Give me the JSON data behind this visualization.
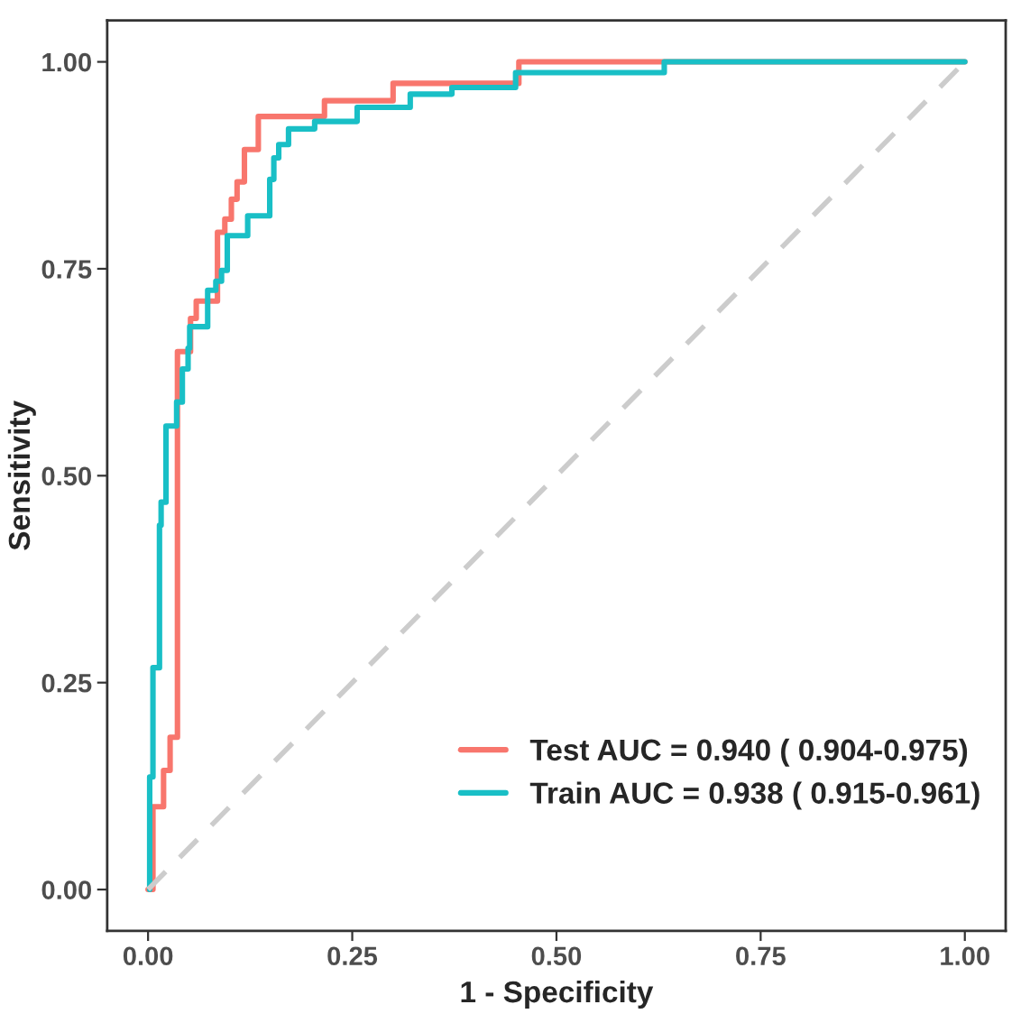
{
  "chart_data": {
    "type": "line",
    "xlabel": "1 - Specificity",
    "ylabel": "Sensitivity",
    "xlim": [
      -0.05,
      1.05
    ],
    "ylim": [
      -0.05,
      1.05
    ],
    "xticks": [
      {
        "value": 0,
        "label": "0.00"
      },
      {
        "value": 0.25,
        "label": "0.25"
      },
      {
        "value": 0.5,
        "label": "0.50"
      },
      {
        "value": 0.75,
        "label": "0.75"
      },
      {
        "value": 1,
        "label": "1.00"
      }
    ],
    "yticks": [
      {
        "value": 0,
        "label": "0.00"
      },
      {
        "value": 0.25,
        "label": "0.25"
      },
      {
        "value": 0.5,
        "label": "0.50"
      },
      {
        "value": 0.75,
        "label": "0.75"
      },
      {
        "value": 1,
        "label": "1.00"
      }
    ],
    "grid": false,
    "legend": "bottom right",
    "line_style": "solid",
    "marker": "none",
    "series": [
      {
        "name": "Test AUC = 0.940 ( 0.904-0.975)",
        "color": "#f8766d",
        "x": [
          0,
          0.006,
          0.006,
          0.019,
          0.019,
          0.027,
          0.027,
          0.036,
          0.036,
          0.052,
          0.052,
          0.059,
          0.059,
          0.085,
          0.085,
          0.094,
          0.094,
          0.102,
          0.102,
          0.109,
          0.109,
          0.118,
          0.118,
          0.135,
          0.135,
          0.216,
          0.216,
          0.3,
          0.3,
          0.454,
          0.454,
          1.0
        ],
        "values": [
          0,
          0,
          0.1,
          0.1,
          0.144,
          0.144,
          0.184,
          0.184,
          0.65,
          0.65,
          0.69,
          0.69,
          0.711,
          0.711,
          0.794,
          0.794,
          0.81,
          0.81,
          0.834,
          0.834,
          0.855,
          0.855,
          0.894,
          0.894,
          0.934,
          0.934,
          0.953,
          0.953,
          0.974,
          0.974,
          1.0,
          1.0
        ]
      },
      {
        "name": "Train AUC = 0.938 ( 0.915-0.961)",
        "color": "#19bfc6",
        "x": [
          0.002,
          0.002,
          0.006,
          0.006,
          0.014,
          0.014,
          0.016,
          0.016,
          0.022,
          0.022,
          0.035,
          0.035,
          0.042,
          0.042,
          0.049,
          0.049,
          0.051,
          0.051,
          0.073,
          0.073,
          0.083,
          0.083,
          0.09,
          0.09,
          0.097,
          0.097,
          0.122,
          0.122,
          0.149,
          0.149,
          0.154,
          0.154,
          0.16,
          0.16,
          0.172,
          0.172,
          0.204,
          0.204,
          0.256,
          0.256,
          0.321,
          0.321,
          0.372,
          0.372,
          0.45,
          0.45,
          0.632,
          0.632,
          1.0
        ],
        "values": [
          0,
          0.136,
          0.136,
          0.268,
          0.268,
          0.44,
          0.44,
          0.468,
          0.468,
          0.56,
          0.56,
          0.589,
          0.589,
          0.629,
          0.629,
          0.654,
          0.654,
          0.68,
          0.68,
          0.724,
          0.724,
          0.735,
          0.735,
          0.748,
          0.748,
          0.79,
          0.79,
          0.814,
          0.814,
          0.858,
          0.858,
          0.884,
          0.884,
          0.9,
          0.9,
          0.919,
          0.919,
          0.928,
          0.928,
          0.945,
          0.945,
          0.961,
          0.961,
          0.969,
          0.969,
          0.987,
          0.987,
          1.0,
          1.0
        ]
      },
      {
        "color": "#cccccc",
        "line_style": "dashed",
        "x": [
          0,
          1
        ],
        "values": [
          0,
          1
        ]
      }
    ]
  }
}
